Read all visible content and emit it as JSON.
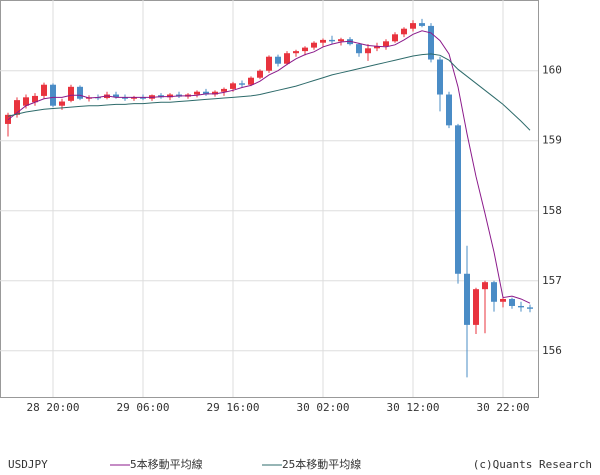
{
  "chart_data": {
    "type": "candlestick",
    "symbol": "USDJPY",
    "credit": "(c)Quants Research",
    "categories": [
      null,
      null,
      null,
      null,
      null,
      "28 20:00",
      null,
      null,
      null,
      null,
      null,
      null,
      null,
      null,
      null,
      "29 06:00",
      null,
      null,
      null,
      null,
      null,
      null,
      null,
      null,
      null,
      "29 16:00",
      null,
      null,
      null,
      null,
      null,
      null,
      null,
      null,
      null,
      "30 02:00",
      null,
      null,
      null,
      null,
      null,
      null,
      null,
      null,
      null,
      "30 12:00",
      null,
      null,
      null,
      null,
      null,
      null,
      null,
      null,
      null,
      "30 22:00",
      null,
      null,
      null
    ],
    "open": [
      159.24,
      159.37,
      159.5,
      159.55,
      159.64,
      159.8,
      159.5,
      159.57,
      159.77,
      159.6,
      159.62,
      159.61,
      159.66,
      159.62,
      159.6,
      159.62,
      159.6,
      159.65,
      159.62,
      159.66,
      159.63,
      159.66,
      159.7,
      159.66,
      159.7,
      159.74,
      159.82,
      159.8,
      159.9,
      160.0,
      160.2,
      160.1,
      160.25,
      160.28,
      160.33,
      160.4,
      160.44,
      160.42,
      160.45,
      160.38,
      160.25,
      160.32,
      160.35,
      160.42,
      160.52,
      160.6,
      160.68,
      160.64,
      160.16,
      159.66,
      159.22,
      157.1,
      156.37,
      156.88,
      156.98,
      156.7,
      156.74,
      156.64,
      156.62
    ],
    "high": [
      159.4,
      159.62,
      159.66,
      159.68,
      159.83,
      159.82,
      159.6,
      159.8,
      159.79,
      159.65,
      159.66,
      159.7,
      159.7,
      159.66,
      159.64,
      159.66,
      159.66,
      159.68,
      159.68,
      159.7,
      159.68,
      159.72,
      159.74,
      159.72,
      159.76,
      159.84,
      159.86,
      159.92,
      160.02,
      160.22,
      160.23,
      160.28,
      160.3,
      160.35,
      160.42,
      160.46,
      160.5,
      160.47,
      160.48,
      160.4,
      160.38,
      160.4,
      160.45,
      160.55,
      160.62,
      160.72,
      160.74,
      160.68,
      160.2,
      159.7,
      159.24,
      157.5,
      156.9,
      157.0,
      157.0,
      156.78,
      156.76,
      156.7,
      156.66
    ],
    "low": [
      159.06,
      159.33,
      159.46,
      159.5,
      159.6,
      159.48,
      159.44,
      159.55,
      159.58,
      159.56,
      159.58,
      159.59,
      159.6,
      159.57,
      159.57,
      159.58,
      159.57,
      159.6,
      159.58,
      159.61,
      159.6,
      159.62,
      159.64,
      159.63,
      159.64,
      159.7,
      159.76,
      159.78,
      159.88,
      159.97,
      160.06,
      160.08,
      160.2,
      160.22,
      160.3,
      160.34,
      160.38,
      160.36,
      160.36,
      160.2,
      160.14,
      160.28,
      160.3,
      160.4,
      160.48,
      160.56,
      160.62,
      160.12,
      159.42,
      159.18,
      156.96,
      155.62,
      156.24,
      156.25,
      156.56,
      156.62,
      156.6,
      156.56,
      156.55
    ],
    "close": [
      159.37,
      159.58,
      159.62,
      159.64,
      159.8,
      159.5,
      159.56,
      159.77,
      159.6,
      159.62,
      159.61,
      159.66,
      159.62,
      159.6,
      159.62,
      159.6,
      159.65,
      159.62,
      159.66,
      159.63,
      159.66,
      159.7,
      159.66,
      159.7,
      159.74,
      159.82,
      159.8,
      159.9,
      160.0,
      160.2,
      160.1,
      160.25,
      160.28,
      160.33,
      160.4,
      160.44,
      160.42,
      160.45,
      160.38,
      160.25,
      160.32,
      160.35,
      160.42,
      160.52,
      160.6,
      160.68,
      160.64,
      160.16,
      159.66,
      159.22,
      157.1,
      156.37,
      156.88,
      156.98,
      156.7,
      156.74,
      156.64,
      156.62,
      156.6
    ],
    "up_color": "#e8333e",
    "down_color": "#4a8cc6",
    "series": [
      {
        "name": "5本移動平均線",
        "color": "#8b1a8b",
        "values": [
          159.3,
          159.4,
          159.5,
          159.55,
          159.6,
          159.62,
          159.62,
          159.65,
          159.65,
          159.61,
          159.62,
          159.64,
          159.62,
          159.62,
          159.62,
          159.62,
          159.62,
          159.63,
          159.63,
          159.64,
          159.64,
          159.65,
          159.67,
          159.67,
          159.69,
          159.72,
          159.76,
          159.79,
          159.85,
          159.94,
          160.0,
          160.09,
          160.17,
          160.23,
          160.27,
          160.34,
          160.38,
          160.41,
          160.42,
          160.39,
          160.36,
          160.35,
          160.34,
          160.37,
          160.44,
          160.52,
          160.57,
          160.54,
          160.43,
          160.24,
          159.77,
          159.1,
          158.49,
          157.96,
          157.41,
          156.76,
          156.78,
          156.74,
          156.68
        ]
      },
      {
        "name": "25本移動平均線",
        "color": "#2e6b6b",
        "values": [
          159.35,
          159.38,
          159.41,
          159.43,
          159.45,
          159.46,
          159.47,
          159.48,
          159.49,
          159.5,
          159.5,
          159.51,
          159.52,
          159.52,
          159.53,
          159.53,
          159.54,
          159.55,
          159.55,
          159.56,
          159.57,
          159.58,
          159.59,
          159.6,
          159.61,
          159.62,
          159.63,
          159.64,
          159.66,
          159.69,
          159.72,
          159.75,
          159.78,
          159.82,
          159.86,
          159.9,
          159.94,
          159.97,
          160.0,
          160.03,
          160.06,
          160.09,
          160.12,
          160.15,
          160.18,
          160.21,
          160.23,
          160.24,
          160.22,
          160.15,
          160.02,
          159.92,
          159.82,
          159.72,
          159.62,
          159.52,
          159.4,
          159.28,
          159.15
        ]
      }
    ],
    "ylim": [
      155.34,
      161.01
    ],
    "yticks": [
      156,
      157,
      158,
      159,
      160
    ],
    "grid": true
  }
}
